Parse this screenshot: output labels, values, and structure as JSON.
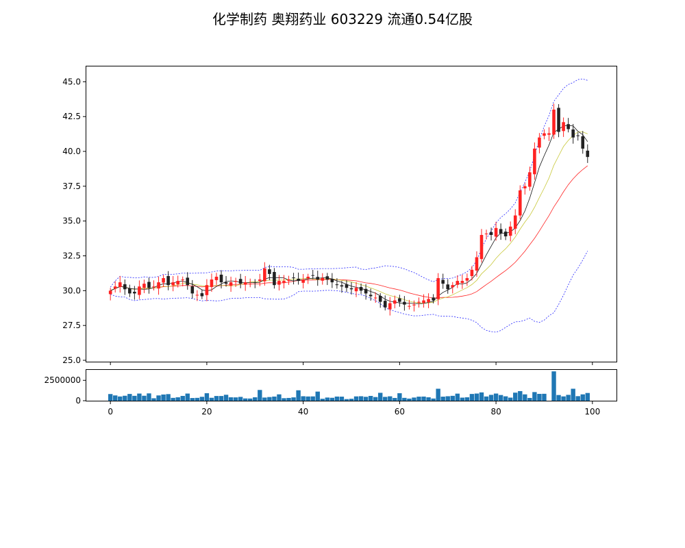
{
  "chart_data": [
    {
      "type": "candlestick",
      "title": "化学制药 奥翔药业 603229 流通0.54亿股",
      "xlim": [
        -5,
        105
      ],
      "ylim": [
        24.9,
        46.1
      ],
      "y_ticks": [
        25.0,
        27.5,
        30.0,
        32.5,
        35.0,
        37.5,
        40.0,
        42.5,
        45.0
      ],
      "x_ticks": [
        0,
        20,
        40,
        60,
        80,
        100
      ],
      "grid": false,
      "colors": {
        "up": "#ff2222",
        "down": "#222222",
        "ma_fast": "#111111",
        "ma_mid": "#c8c83a",
        "ma_slow": "#ff2222",
        "boll": "#2222ff",
        "volume": "#1f77b4"
      },
      "closes": [
        30.0,
        30.3,
        30.6,
        30.1,
        29.8,
        29.8,
        30.3,
        30.5,
        30.2,
        30.3,
        30.6,
        30.9,
        30.4,
        30.6,
        30.7,
        30.8,
        30.4,
        29.8,
        29.7,
        29.6,
        30.4,
        30.8,
        31.0,
        30.6,
        30.5,
        30.6,
        30.7,
        30.5,
        30.6,
        30.5,
        30.6,
        30.8,
        31.6,
        31.2,
        30.4,
        30.7,
        30.7,
        30.8,
        30.9,
        30.7,
        30.8,
        31.0,
        31.1,
        30.8,
        30.9,
        30.8,
        30.6,
        30.4,
        30.3,
        30.2,
        30.1,
        30.2,
        30.0,
        29.8,
        29.6,
        29.5,
        29.2,
        28.8,
        29.1,
        29.3,
        29.2,
        29.0,
        28.9,
        29.0,
        29.2,
        29.3,
        29.4,
        29.3,
        30.9,
        30.5,
        30.1,
        30.4,
        30.7,
        30.7,
        30.9,
        31.5,
        32.4,
        34.0,
        34.1,
        34.0,
        34.5,
        34.1,
        33.9,
        34.6,
        35.4,
        37.2,
        37.5,
        38.5,
        40.2,
        41.0,
        41.3,
        41.3,
        43.0,
        41.4,
        42.1,
        41.6,
        41.0,
        41.1,
        40.2,
        39.6
      ],
      "volume_ticks": [
        0,
        2500000
      ],
      "volumes": [
        820000,
        650000,
        520000,
        610000,
        830000,
        600000,
        880000,
        610000,
        900000,
        300000,
        650000,
        760000,
        810000,
        350000,
        420000,
        590000,
        880000,
        330000,
        350000,
        480000,
        920000,
        360000,
        580000,
        580000,
        730000,
        420000,
        410000,
        470000,
        280000,
        270000,
        420000,
        1320000,
        390000,
        450000,
        510000,
        780000,
        310000,
        340000,
        410000,
        1280000,
        550000,
        520000,
        530000,
        1120000,
        240000,
        390000,
        360000,
        510000,
        500000,
        200000,
        240000,
        530000,
        550000,
        480000,
        590000,
        450000,
        970000,
        470000,
        540000,
        340000,
        920000,
        350000,
        260000,
        390000,
        500000,
        510000,
        420000,
        270000,
        1470000,
        500000,
        550000,
        600000,
        870000,
        380000,
        420000,
        830000,
        880000,
        1020000,
        520000,
        720000,
        880000,
        700000,
        540000,
        380000,
        990000,
        1180000,
        780000,
        340000,
        1060000,
        840000,
        850000,
        0,
        3600000,
        700000,
        530000,
        720000,
        1470000,
        560000,
        780000,
        950000
      ]
    }
  ]
}
